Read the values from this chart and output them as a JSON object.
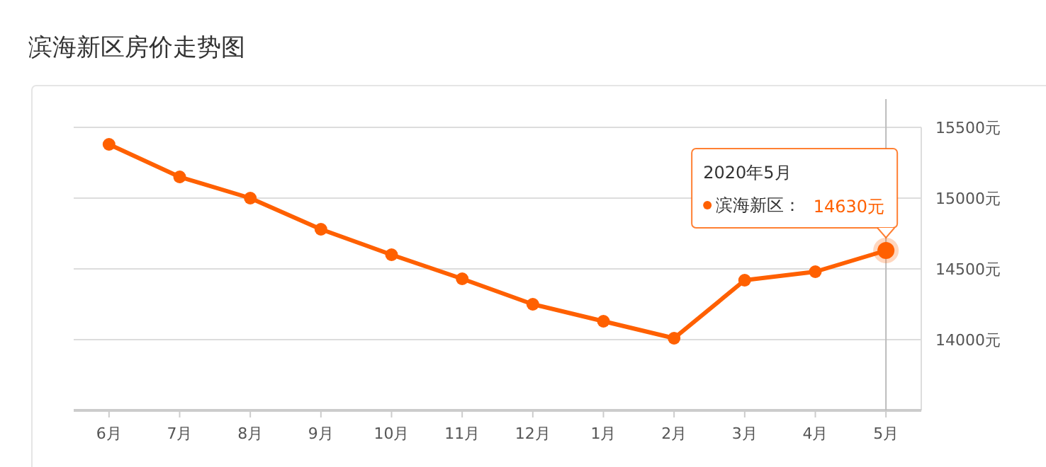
{
  "chart_data": {
    "type": "line",
    "title": "滨海新区房价走势图",
    "categories": [
      "6月",
      "7月",
      "8月",
      "9月",
      "10月",
      "11月",
      "12月",
      "1月",
      "2月",
      "3月",
      "4月",
      "5月"
    ],
    "series": [
      {
        "name": "滨海新区：",
        "color": "#ff6000",
        "values": [
          15380,
          15150,
          15000,
          14780,
          14600,
          14430,
          14250,
          14130,
          14010,
          14420,
          14480,
          14630
        ],
        "value_labels": [
          null,
          null,
          null,
          null,
          null,
          null,
          null,
          null,
          null,
          null,
          null,
          "14630元"
        ]
      }
    ],
    "ylim": [
      13500,
      15500
    ],
    "yticks": [
      {
        "value": 14000,
        "label": "14000元"
      },
      {
        "value": 14500,
        "label": "14500元"
      },
      {
        "value": 15000,
        "label": "15000元"
      },
      {
        "value": 15500,
        "label": "15500元"
      }
    ],
    "grid": "y",
    "legend": "top right",
    "marker": "circle",
    "line_style": "solid",
    "ref_lines": [
      {
        "axis": "x",
        "value": "5月",
        "color": "#bbbbbb"
      }
    ],
    "annotations": [
      "2020年5月"
    ]
  }
}
